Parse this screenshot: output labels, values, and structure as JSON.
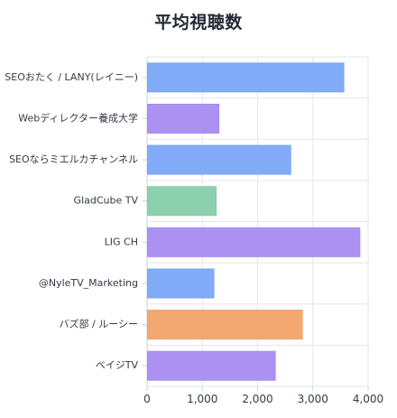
{
  "chart_data": {
    "type": "bar",
    "orientation": "horizontal",
    "title": "平均視聴数",
    "xlabel": "",
    "ylabel": "",
    "xlim": [
      0,
      4000
    ],
    "x_ticks": [
      0,
      1000,
      2000,
      3000,
      4000
    ],
    "x_tick_labels": [
      "0",
      "1,000",
      "2,000",
      "3,000",
      "4,000"
    ],
    "grid": true,
    "legend": "none",
    "categories": [
      "SEOおたく / LANY(レイニー)",
      "Webディレクター養成大学",
      "SEOならミエルカチャンネル",
      "GladCube TV",
      "LIG CH",
      "@NyleTV_Marketing",
      "バズ部 / ルーシー",
      "ベイジTV"
    ],
    "values": [
      3560,
      1300,
      2600,
      1250,
      3850,
      1210,
      2810,
      2320
    ],
    "colors": [
      "#7aa7f5",
      "#a58bf1",
      "#7aa7f5",
      "#86cda9",
      "#a58bf1",
      "#7aa7f5",
      "#f2a369",
      "#a58bf1"
    ]
  }
}
